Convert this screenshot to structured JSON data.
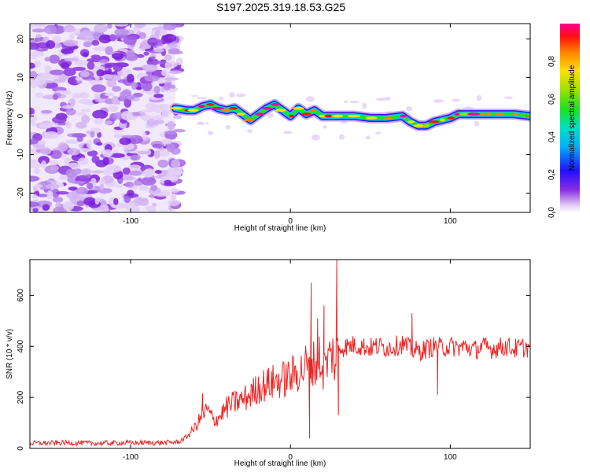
{
  "title": "S197.2025.319.18.53.G25",
  "chart_data": [
    {
      "type": "heatmap",
      "name": "spectrogram",
      "xlabel": "Height of straight line (km)",
      "ylabel": "Frequency (Hz)",
      "xlim": [
        -163,
        150
      ],
      "ylim": [
        -25,
        24
      ],
      "xticks": [
        -100,
        0,
        100
      ],
      "yticks": [
        -20,
        -10,
        0,
        10,
        20
      ],
      "colorbar_label": "Normalized spectral amplitude",
      "colorbar_range": [
        0,
        1
      ],
      "colorbar_ticks": [
        0.0,
        0.2,
        0.4,
        0.6,
        0.8
      ],
      "noise_region_x": [
        -163,
        -72
      ],
      "signal_trace": {
        "x": [
          -72,
          -65,
          -60,
          -55,
          -50,
          -45,
          -40,
          -35,
          -30,
          -25,
          -20,
          -15,
          -10,
          -5,
          0,
          5,
          10,
          15,
          20,
          25,
          30,
          40,
          50,
          60,
          70,
          75,
          80,
          85,
          90,
          95,
          100,
          105,
          110,
          115,
          120,
          125,
          130,
          140,
          150
        ],
        "y": [
          2,
          1.5,
          1.5,
          2.5,
          3,
          2,
          1.5,
          2,
          0.5,
          -1,
          0.5,
          2,
          3,
          1.5,
          0,
          2,
          0.5,
          1.5,
          0,
          0,
          0,
          0,
          -0.5,
          -0.5,
          0,
          -1.5,
          -2.5,
          -2.5,
          -1.5,
          -1,
          -0.5,
          0.5,
          0.5,
          0.5,
          0.5,
          0.5,
          0.5,
          0.5,
          0
        ]
      }
    },
    {
      "type": "line",
      "name": "snr",
      "xlabel": "Height of straight line (km)",
      "ylabel": "SNR (10 * v/v)",
      "xlim": [
        -163,
        150
      ],
      "ylim": [
        0,
        740
      ],
      "xticks": [
        -100,
        0,
        100
      ],
      "yticks": [
        0,
        200,
        400,
        600
      ],
      "series": [
        {
          "name": "SNR",
          "color": "#ee2222",
          "x": [
            -163,
            -140,
            -120,
            -100,
            -80,
            -70,
            -65,
            -60,
            -55,
            -52,
            -48,
            -45,
            -40,
            -35,
            -30,
            -25,
            -20,
            -15,
            -10,
            -5,
            0,
            5,
            8,
            10,
            12,
            14,
            16,
            18,
            20,
            22,
            24,
            26,
            28,
            30,
            35,
            40,
            45,
            50,
            55,
            60,
            65,
            70,
            75,
            80,
            85,
            90,
            95,
            100,
            105,
            110,
            115,
            120,
            125,
            130,
            135,
            140,
            145,
            150
          ],
          "y": [
            20,
            22,
            20,
            22,
            22,
            25,
            45,
            80,
            130,
            150,
            110,
            120,
            160,
            180,
            190,
            210,
            240,
            250,
            260,
            270,
            280,
            300,
            310,
            330,
            300,
            340,
            320,
            360,
            300,
            330,
            350,
            380,
            330,
            390,
            400,
            405,
            400,
            395,
            400,
            395,
            400,
            410,
            390,
            380,
            390,
            400,
            395,
            400,
            395,
            400,
            385,
            400,
            390,
            395,
            400,
            390,
            395,
            395
          ]
        }
      ],
      "spikes": [
        {
          "x": -55,
          "y": 215
        },
        {
          "x": 13,
          "y": 650
        },
        {
          "x": 17,
          "y": 510
        },
        {
          "x": 21,
          "y": 560
        },
        {
          "x": 29,
          "y": 740
        },
        {
          "x": 30,
          "y": 130
        },
        {
          "x": 12,
          "y": 40
        },
        {
          "x": 76,
          "y": 530
        },
        {
          "x": 92,
          "y": 210
        }
      ]
    }
  ]
}
